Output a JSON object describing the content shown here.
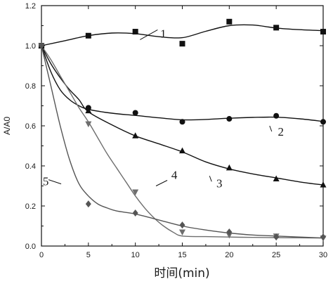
{
  "chart_data": {
    "type": "scatter",
    "xlabel": "时间(min)",
    "ylabel": "A/A0",
    "xlim": [
      0,
      30
    ],
    "ylim": [
      0,
      1.2
    ],
    "xticks": [
      0,
      5,
      10,
      15,
      20,
      25,
      30
    ],
    "yticks": [
      0.0,
      0.2,
      0.4,
      0.6,
      0.8,
      1.0,
      1.2
    ],
    "x_tick_labels": [
      "0",
      "5",
      "10",
      "15",
      "20",
      "25",
      "30"
    ],
    "y_tick_labels": [
      "0.0",
      "0.2",
      "0.4",
      "0.6",
      "0.8",
      "1.0",
      "1.2"
    ],
    "grid": false,
    "series": [
      {
        "name": "1",
        "marker": "square",
        "color": "#111111",
        "x": [
          0,
          5,
          10,
          15,
          20,
          25,
          30
        ],
        "values": [
          1.0,
          1.05,
          1.07,
          1.01,
          1.12,
          1.09,
          1.07
        ],
        "fit_x": [
          0,
          2.5,
          5,
          7.5,
          10,
          12.5,
          15,
          17.5,
          20,
          22.5,
          25,
          27.5,
          30
        ],
        "fit_y": [
          1.0,
          1.025,
          1.05,
          1.063,
          1.06,
          1.045,
          1.04,
          1.072,
          1.1,
          1.103,
          1.088,
          1.08,
          1.075
        ],
        "label_at": [
          10.5,
          1.03
        ]
      },
      {
        "name": "2",
        "marker": "circle",
        "color": "#111111",
        "x": [
          0,
          5,
          10,
          15,
          20,
          25,
          30
        ],
        "values": [
          1.0,
          0.69,
          0.665,
          0.62,
          0.635,
          0.65,
          0.62
        ],
        "fit_x": [
          0,
          1,
          2,
          3,
          4,
          5,
          7.5,
          10,
          12.5,
          15,
          17.5,
          20,
          22.5,
          25,
          27.5,
          30
        ],
        "fit_y": [
          1.0,
          0.87,
          0.78,
          0.73,
          0.7,
          0.682,
          0.663,
          0.652,
          0.64,
          0.63,
          0.632,
          0.638,
          0.642,
          0.643,
          0.635,
          0.622
        ],
        "label_at": [
          24.3,
          0.6
        ]
      },
      {
        "name": "3",
        "marker": "triangle-up",
        "color": "#111111",
        "x": [
          0,
          5,
          10,
          15,
          20,
          25,
          30
        ],
        "values": [
          1.0,
          0.675,
          0.55,
          0.475,
          0.39,
          0.335,
          0.305
        ],
        "fit_x": [
          0,
          1,
          2,
          3,
          4,
          5,
          7.5,
          10,
          12.5,
          15,
          17.5,
          20,
          22.5,
          25,
          27.5,
          30
        ],
        "fit_y": [
          1.0,
          0.91,
          0.84,
          0.78,
          0.73,
          0.67,
          0.605,
          0.55,
          0.51,
          0.47,
          0.42,
          0.385,
          0.36,
          0.34,
          0.32,
          0.305
        ],
        "label_at": [
          17.9,
          0.35
        ]
      },
      {
        "name": "4",
        "marker": "triangle-down",
        "color": "#6e6e6e",
        "x": [
          0,
          5,
          10,
          15,
          20,
          25,
          30
        ],
        "values": [
          1.0,
          0.61,
          0.27,
          0.07,
          0.055,
          0.05,
          0.04
        ],
        "fit_x": [
          0,
          1,
          2,
          3,
          4,
          5,
          6,
          7,
          8,
          9,
          10,
          11,
          12,
          13,
          14,
          15,
          17.5,
          20,
          22.5,
          25,
          27.5,
          30
        ],
        "fit_y": [
          1.0,
          0.93,
          0.85,
          0.77,
          0.69,
          0.62,
          0.54,
          0.46,
          0.39,
          0.32,
          0.25,
          0.19,
          0.14,
          0.1,
          0.07,
          0.05,
          0.047,
          0.045,
          0.043,
          0.042,
          0.041,
          0.04
        ],
        "label_at": [
          12.2,
          0.3
        ]
      },
      {
        "name": "5",
        "marker": "diamond",
        "color": "#555555",
        "x": [
          0,
          5,
          10,
          15,
          20,
          25,
          30
        ],
        "values": [
          1.0,
          0.21,
          0.165,
          0.105,
          0.07,
          0.045,
          0.045
        ],
        "fit_x": [
          0,
          1,
          2,
          3,
          4,
          5,
          6,
          7,
          8,
          10,
          12.5,
          15,
          17.5,
          20,
          22.5,
          25,
          27.5,
          30
        ],
        "fit_y": [
          1.0,
          0.8,
          0.6,
          0.43,
          0.31,
          0.25,
          0.21,
          0.19,
          0.175,
          0.16,
          0.13,
          0.1,
          0.08,
          0.065,
          0.055,
          0.05,
          0.045,
          0.04
        ],
        "label_at": [
          2.1,
          0.31
        ]
      }
    ]
  }
}
